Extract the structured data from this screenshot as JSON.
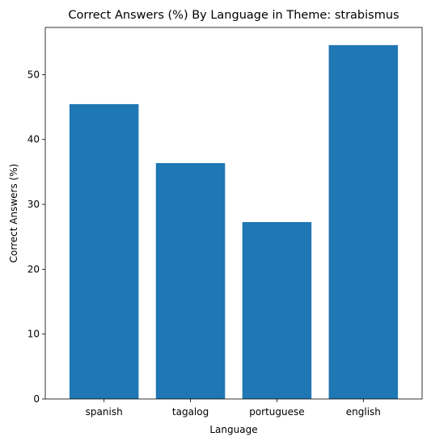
{
  "chart_data": {
    "type": "bar",
    "title": "Correct Answers (%) By Language in Theme: strabismus",
    "xlabel": "Language",
    "ylabel": "Correct Answers (%)",
    "categories": [
      "spanish",
      "tagalog",
      "portuguese",
      "english"
    ],
    "values": [
      45.45,
      36.36,
      27.27,
      54.55
    ],
    "ylim": [
      0,
      57.27
    ],
    "yticks": [
      0,
      10,
      20,
      30,
      40,
      50
    ],
    "grid": false,
    "legend": "none",
    "bar_color": "#1f77b4"
  }
}
